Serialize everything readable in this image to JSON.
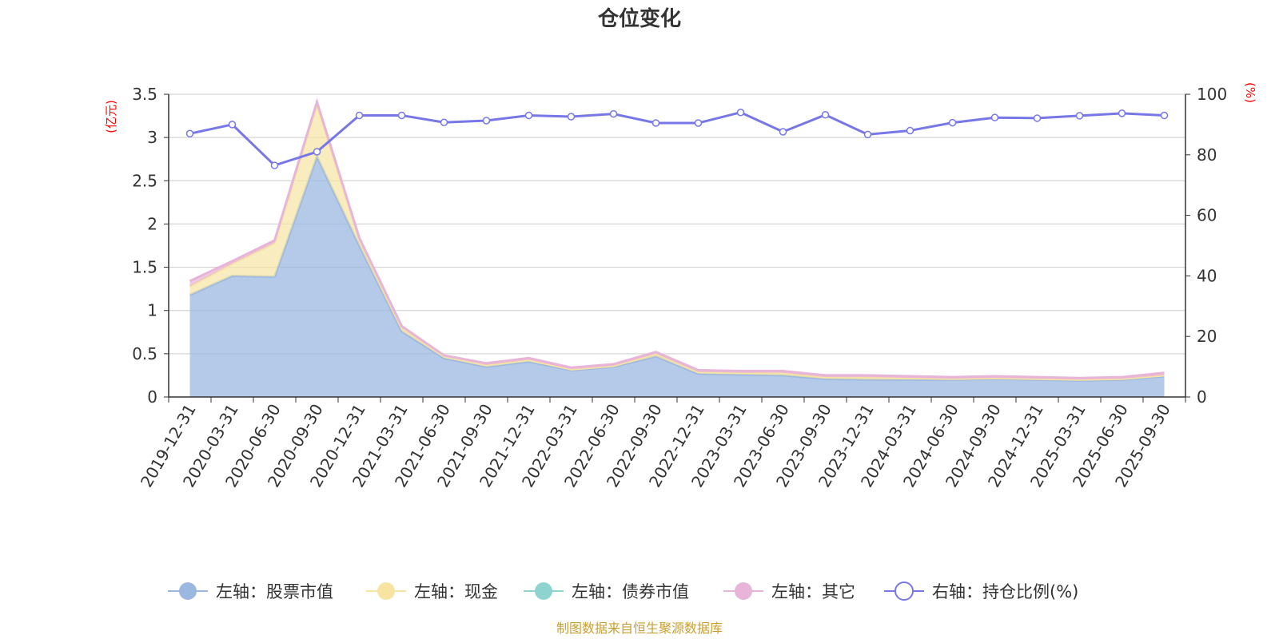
{
  "chart_data": {
    "type": "area",
    "title": "仓位变化",
    "left_axis_unit": "(亿元)",
    "right_axis_unit": "(%)",
    "categories": [
      "2019-12-31",
      "2020-03-31",
      "2020-06-30",
      "2020-09-30",
      "2020-12-31",
      "2021-03-31",
      "2021-06-30",
      "2021-09-30",
      "2021-12-31",
      "2022-03-31",
      "2022-06-30",
      "2022-09-30",
      "2022-12-31",
      "2023-03-31",
      "2023-06-30",
      "2023-09-30",
      "2023-12-31",
      "2024-03-31",
      "2024-06-30",
      "2024-09-30",
      "2024-12-31",
      "2025-03-31",
      "2025-06-30",
      "2025-09-30"
    ],
    "left_axis": {
      "min": 0,
      "max": 3.5,
      "ticks": [
        "0",
        "0.5",
        "1",
        "1.5",
        "2",
        "2.5",
        "3",
        "3.5"
      ]
    },
    "right_axis": {
      "min": 0,
      "max": 100,
      "ticks": [
        "0",
        "20",
        "40",
        "60",
        "80",
        "100"
      ]
    },
    "grid": true,
    "legend_position": "bottom",
    "series": [
      {
        "name": "左轴：股票市值",
        "axis": "left",
        "stack": true,
        "color": "#9bb8e0",
        "values": [
          1.18,
          1.4,
          1.39,
          2.78,
          1.75,
          0.76,
          0.45,
          0.35,
          0.41,
          0.31,
          0.35,
          0.47,
          0.27,
          0.26,
          0.25,
          0.21,
          0.2,
          0.2,
          0.2,
          0.21,
          0.2,
          0.19,
          0.2,
          0.24
        ]
      },
      {
        "name": "左轴：现金",
        "axis": "left",
        "stack": true,
        "color": "#f7e4a3",
        "values": [
          0.1,
          0.14,
          0.39,
          0.6,
          0.07,
          0.04,
          0.02,
          0.02,
          0.02,
          0.01,
          0.01,
          0.03,
          0.02,
          0.02,
          0.03,
          0.02,
          0.03,
          0.02,
          0.01,
          0.01,
          0.01,
          0.01,
          0.01,
          0.01
        ]
      },
      {
        "name": "左轴：债券市值",
        "axis": "left",
        "stack": true,
        "color": "#8fd3d0",
        "values": [
          0,
          0,
          0,
          0,
          0,
          0,
          0,
          0,
          0,
          0,
          0,
          0,
          0,
          0,
          0,
          0,
          0,
          0,
          0,
          0,
          0,
          0,
          0,
          0
        ]
      },
      {
        "name": "左轴：其它",
        "axis": "left",
        "stack": true,
        "color": "#e8b4d8",
        "values": [
          0.06,
          0.03,
          0.03,
          0.03,
          0.02,
          0.02,
          0.01,
          0.02,
          0.02,
          0.02,
          0.02,
          0.02,
          0.02,
          0.02,
          0.02,
          0.02,
          0.02,
          0.02,
          0.02,
          0.02,
          0.02,
          0.02,
          0.02,
          0.03
        ]
      },
      {
        "name": "右轴：持仓比例(%)",
        "axis": "right",
        "color": "#7777e8",
        "values": [
          87.0,
          90.0,
          76.5,
          81.0,
          93.0,
          93.0,
          90.7,
          91.3,
          93.0,
          92.6,
          93.5,
          90.5,
          90.5,
          94.0,
          87.6,
          93.2,
          86.7,
          88.0,
          90.6,
          92.3,
          92.1,
          92.9,
          93.7,
          93.0
        ]
      }
    ]
  },
  "footer": {
    "source": "制图数据来自恒生聚源数据库"
  }
}
